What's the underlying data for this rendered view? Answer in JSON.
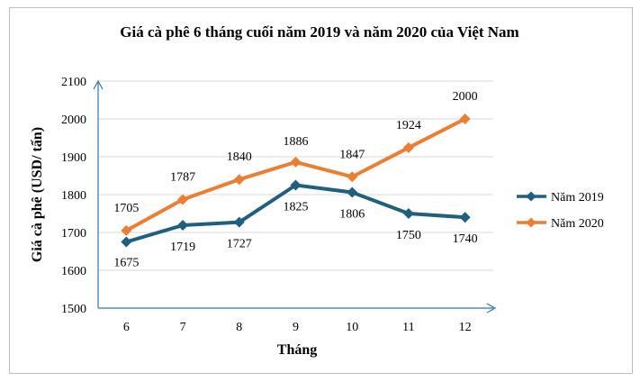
{
  "chart_data": {
    "type": "line",
    "title": "Giá cà phê 6 tháng cuối năm 2019 và năm 2020 của Việt Nam",
    "xlabel": "Tháng",
    "ylabel": "Giá cà phê (USD/ tấn)",
    "categories": [
      "6",
      "7",
      "8",
      "9",
      "10",
      "11",
      "12"
    ],
    "yticks": [
      "1500",
      "1600",
      "1700",
      "1800",
      "1900",
      "2000",
      "2100"
    ],
    "ylim": [
      1500,
      2100
    ],
    "grid": true,
    "legend_position": "right",
    "series": [
      {
        "name": "Năm 2019",
        "color": "#1f5f7f",
        "marker": "diamond",
        "values": [
          1675,
          1719,
          1727,
          1825,
          1806,
          1750,
          1740
        ],
        "labels": [
          "1675",
          "1719",
          "1727",
          "1825",
          "1806",
          "1750",
          "1740"
        ]
      },
      {
        "name": "Năm 2020",
        "color": "#ed7d31",
        "marker": "diamond",
        "values": [
          1705,
          1787,
          1840,
          1886,
          1847,
          1924,
          2000
        ],
        "labels": [
          "1705",
          "1787",
          "1840",
          "1886",
          "1847",
          "1924",
          "2000"
        ]
      }
    ]
  }
}
